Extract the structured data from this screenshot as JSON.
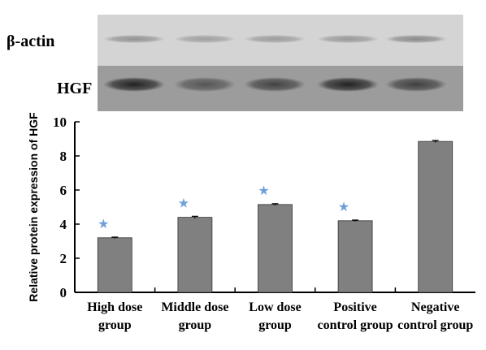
{
  "blot": {
    "lanes": 5,
    "bands": [
      {
        "label": "β-actin",
        "intensity": [
          0.35,
          0.28,
          0.3,
          0.32,
          0.4
        ]
      },
      {
        "label": "HGF",
        "intensity": [
          0.95,
          0.55,
          0.7,
          0.95,
          0.72
        ]
      }
    ]
  },
  "chart_data": {
    "type": "bar",
    "categories": [
      [
        "High dose",
        "group"
      ],
      [
        "Middle dose",
        "group"
      ],
      [
        "Low dose",
        "group"
      ],
      [
        "Positive",
        "control group"
      ],
      [
        "Negative",
        "control group"
      ]
    ],
    "values": [
      3.2,
      4.4,
      5.15,
      4.2,
      8.85
    ],
    "errors": [
      0.04,
      0.06,
      0.05,
      0.04,
      0.06
    ],
    "significance": [
      true,
      true,
      true,
      true,
      false
    ],
    "marker": "★",
    "ylabel": "Relative protein expression of HGF",
    "xlabel": "",
    "ylim": [
      0,
      10
    ],
    "yticks": [
      0,
      2,
      4,
      6,
      8,
      10
    ],
    "bar_color": "#808080",
    "marker_color": "#6f9fd8",
    "grid": false
  }
}
